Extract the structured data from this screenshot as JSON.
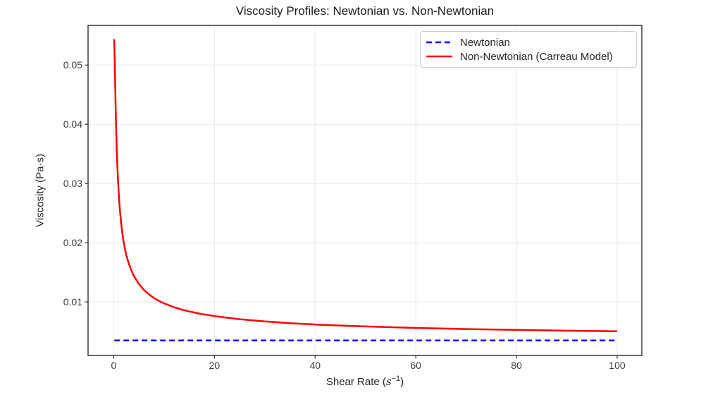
{
  "figure": {
    "background": "#ffffff",
    "spine_color": "#1a1a1a",
    "grid_color": "#e9e9e9",
    "tick_color": "#333333"
  },
  "chart_data": {
    "type": "line",
    "title": "Viscosity Profiles: Newtonian vs. Non-Newtonian",
    "xlabel": {
      "text": "Shear Rate (s⁻¹)",
      "prefix": "Shear Rate (",
      "variable": "s",
      "exponent": "−1",
      "suffix": ")"
    },
    "ylabel": "Viscosity (Pa·s)",
    "xlim": [
      -5.1,
      104.9
    ],
    "ylim": [
      0.00096,
      0.0567
    ],
    "grid": true,
    "legend_position": "upper right",
    "x_ticks": [
      0,
      20,
      40,
      60,
      80,
      100
    ],
    "x_tick_labels": [
      "0",
      "20",
      "40",
      "60",
      "80",
      "100"
    ],
    "y_ticks": [
      0.01,
      0.02,
      0.03,
      0.04,
      0.05
    ],
    "y_tick_labels": [
      "0.01",
      "0.02",
      "0.03",
      "0.04",
      "0.05"
    ],
    "series": [
      {
        "name": "Newtonian",
        "color": "#0000ff",
        "style": "dashed",
        "line_width": 2.5,
        "x": [
          0.1,
          100
        ],
        "y": [
          0.0035,
          0.0035
        ]
      },
      {
        "name": "Non-Newtonian (Carreau Model)",
        "color": "#ff0000",
        "style": "solid",
        "line_width": 2.5,
        "x": [
          0.1,
          0.15,
          0.2,
          0.3,
          0.4,
          0.5,
          0.6,
          0.7,
          0.8,
          0.9,
          1.0,
          1.2,
          1.5,
          1.75,
          2,
          2.5,
          3,
          3.5,
          4,
          5,
          6,
          7,
          8,
          9,
          10,
          12,
          13.5,
          15,
          17.5,
          20,
          25,
          30,
          35,
          40,
          45,
          50,
          60,
          70,
          80,
          90,
          100
        ],
        "y": [
          0.05436,
          0.05259,
          0.0505,
          0.0461,
          0.04208,
          0.03864,
          0.03578,
          0.03339,
          0.03138,
          0.02966,
          0.02818,
          0.02577,
          0.02307,
          0.02137,
          0.02001,
          0.01785,
          0.01646,
          0.01531,
          0.01439,
          0.01302,
          0.01202,
          0.01126,
          0.01066,
          0.01016,
          0.00975,
          0.0091,
          0.00871,
          0.00839,
          0.00795,
          0.0076,
          0.00708,
          0.00671,
          0.00642,
          0.00619,
          0.00601,
          0.00585,
          0.0056,
          0.00542,
          0.00527,
          0.00514,
          0.00504
        ]
      }
    ]
  }
}
